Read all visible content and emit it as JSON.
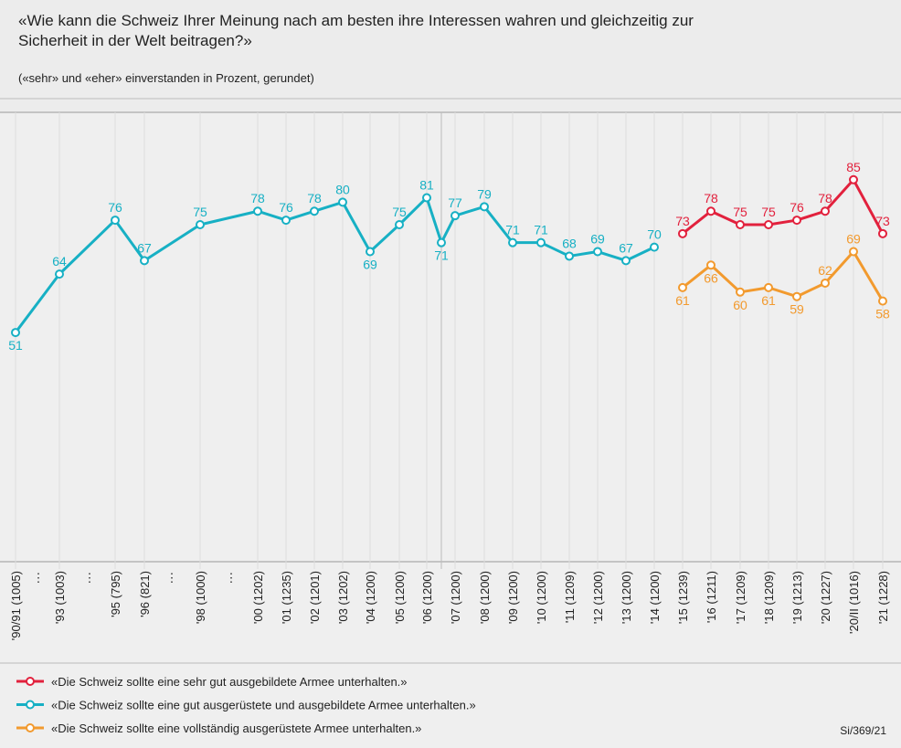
{
  "chart_data": {
    "type": "line",
    "title": "«Wie kann die Schweiz Ihrer Meinung nach am besten ihre Interessen wahren und gleichzeitig zur Sicherheit in der Welt beitragen?»",
    "subtitle": "(«sehr» und «eher» einverstanden in Prozent, gerundet)",
    "source": "Si/369/21",
    "axis_break_label": "⋮",
    "categories": [
      "'90/91 (1005)",
      "'93 (1003)",
      "'95 (795)",
      "'96 (821)",
      "'98 (1000)",
      "'00 (1202)",
      "'01 (1235)",
      "'02 (1201)",
      "'03 (1202)",
      "'04 (1200)",
      "'05 (1200)",
      "'06 (1200)",
      null,
      "'07 (1200)",
      "'08 (1200)",
      "'09 (1200)",
      "'10 (1200)",
      "'11 (1209)",
      "'12 (1200)",
      "'13 (1200)",
      "'14 (1200)",
      "'15 (1239)",
      "'16 (1211)",
      "'17 (1209)",
      "'18 (1209)",
      "'19 (1213)",
      "'20 (1227)",
      "'20/II (1016)",
      "'21 (1228)"
    ],
    "ylim": [
      0,
      100
    ],
    "series": [
      {
        "name": "«Die Schweiz sollte eine sehr gut ausgebildete Armee unterhalten.»",
        "color": "#e2213d",
        "values": [
          null,
          null,
          null,
          null,
          null,
          null,
          null,
          null,
          null,
          null,
          null,
          null,
          null,
          null,
          null,
          null,
          null,
          null,
          null,
          null,
          null,
          73,
          78,
          75,
          75,
          76,
          78,
          85,
          73
        ]
      },
      {
        "name": "«Die Schweiz sollte eine gut ausgerüstete und ausgebildete Armee unterhalten.»",
        "color": "#17b0c4",
        "values": [
          51,
          64,
          76,
          67,
          75,
          78,
          76,
          78,
          80,
          69,
          75,
          81,
          71,
          77,
          79,
          71,
          71,
          68,
          69,
          67,
          70,
          null,
          null,
          null,
          null,
          null,
          null,
          null,
          null
        ]
      },
      {
        "name": "«Die Schweiz sollte eine vollständig ausgerüstete Armee unterhalten.»",
        "color": "#f29a2e",
        "values": [
          null,
          null,
          null,
          null,
          null,
          null,
          null,
          null,
          null,
          null,
          null,
          null,
          null,
          null,
          null,
          null,
          null,
          null,
          null,
          null,
          null,
          61,
          66,
          60,
          61,
          59,
          62,
          69,
          58
        ]
      }
    ]
  }
}
